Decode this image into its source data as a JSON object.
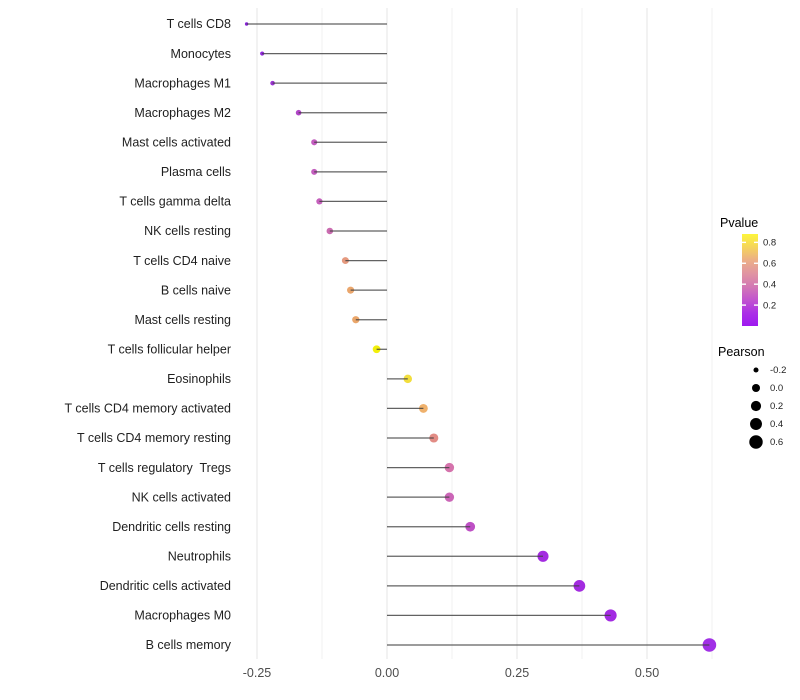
{
  "chart_data": {
    "type": "scatter",
    "subtype": "lollipop",
    "title": "",
    "xlabel": "",
    "ylabel": "",
    "xlim": [
      -0.287,
      0.633
    ],
    "x_ticks": [
      -0.25,
      0.0,
      0.25,
      0.5
    ],
    "x_tick_labels": [
      "-0.25",
      "0.00",
      "0.25",
      "0.50"
    ],
    "x_minor_ticks": [
      -0.125,
      0.125,
      0.375,
      0.625
    ],
    "grid": "vertical-only",
    "background": "#ffffff",
    "gridline_major_color": "#e4e4e4",
    "gridline_minor_color": "#f1f1f1",
    "stem_color": "#3f3f3f",
    "points": [
      {
        "label": "T cells CD8",
        "pearson": -0.27,
        "pvalue": 0.06,
        "color": "#8B22DE"
      },
      {
        "label": "Monocytes",
        "pearson": -0.24,
        "pvalue": 0.08,
        "color": "#9128DB"
      },
      {
        "label": "Macrophages M1",
        "pearson": -0.22,
        "pvalue": 0.13,
        "color": "#9C34D3"
      },
      {
        "label": "Macrophages M2",
        "pearson": -0.17,
        "pvalue": 0.24,
        "color": "#B145C7"
      },
      {
        "label": "Mast cells activated",
        "pearson": -0.14,
        "pvalue": 0.34,
        "color": "#C35CBF"
      },
      {
        "label": "Plasma cells",
        "pearson": -0.14,
        "pvalue": 0.34,
        "color": "#C35DBE"
      },
      {
        "label": "T cells gamma delta",
        "pearson": -0.13,
        "pvalue": 0.35,
        "color": "#C560BC"
      },
      {
        "label": "NK cells resting",
        "pearson": -0.11,
        "pvalue": 0.41,
        "color": "#CA6CB0"
      },
      {
        "label": "T cells CD4 naive",
        "pearson": -0.08,
        "pvalue": 0.53,
        "color": "#E59A7F"
      },
      {
        "label": "B cells naive",
        "pearson": -0.07,
        "pvalue": 0.58,
        "color": "#EAA66C"
      },
      {
        "label": "Mast cells resting",
        "pearson": -0.06,
        "pvalue": 0.58,
        "color": "#EAA66A"
      },
      {
        "label": "T cells follicular helper",
        "pearson": -0.02,
        "pvalue": 0.86,
        "color": "#F2EF0A"
      },
      {
        "label": "Eosinophils",
        "pearson": 0.04,
        "pvalue": 0.79,
        "color": "#F2DE3D"
      },
      {
        "label": "T cells CD4 memory activated",
        "pearson": 0.07,
        "pvalue": 0.61,
        "color": "#EFB16C"
      },
      {
        "label": "T cells CD4 memory resting",
        "pearson": 0.09,
        "pvalue": 0.51,
        "color": "#E28C85"
      },
      {
        "label": "T cells regulatory  Tregs",
        "pearson": 0.12,
        "pvalue": 0.45,
        "color": "#D573AC"
      },
      {
        "label": "NK cells activated",
        "pearson": 0.12,
        "pvalue": 0.41,
        "color": "#CB65B7"
      },
      {
        "label": "Dendritic cells resting",
        "pearson": 0.16,
        "pvalue": 0.33,
        "color": "#BE50C5"
      },
      {
        "label": "Neutrophils",
        "pearson": 0.3,
        "pvalue": 0.13,
        "color": "#A32BE0"
      },
      {
        "label": "Dendritic cells activated",
        "pearson": 0.37,
        "pvalue": 0.12,
        "color": "#A32BE0"
      },
      {
        "label": "Macrophages M0",
        "pearson": 0.43,
        "pvalue": 0.1,
        "color": "#A32BE2"
      },
      {
        "label": "B cells memory",
        "pearson": 0.62,
        "pvalue": 0.04,
        "color": "#A130E6"
      }
    ],
    "color_legend": {
      "title": "Pvalue",
      "tick_labels": [
        "0.8",
        "0.6",
        "0.4",
        "0.2"
      ],
      "range": [
        0,
        0.88
      ],
      "gradient_top_to_bottom": [
        "#FDF53B",
        "#F5D45C",
        "#ECAE87",
        "#E094A2",
        "#D378B4",
        "#C254CE",
        "#AC2FE6",
        "#9E19F0"
      ]
    },
    "size_legend": {
      "title": "Pearson",
      "entries": [
        {
          "label": "-0.2",
          "pearson": -0.2
        },
        {
          "label": "0.0",
          "pearson": 0.0
        },
        {
          "label": "0.2",
          "pearson": 0.2
        },
        {
          "label": "0.4",
          "pearson": 0.4
        },
        {
          "label": "0.6",
          "pearson": 0.6
        }
      ],
      "dot_color": "#000000"
    },
    "label_color": "#1f1f1f",
    "axis_tick_color": "#4d4d4d"
  }
}
